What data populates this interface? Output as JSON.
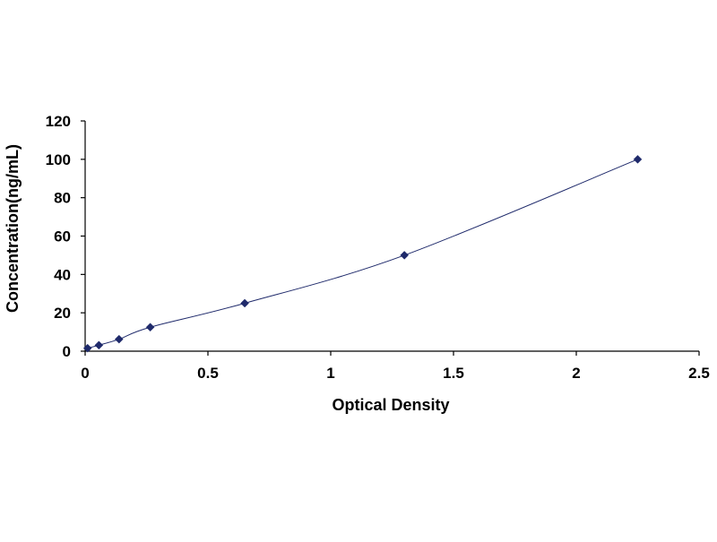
{
  "chart_data": {
    "type": "scatter",
    "title": "",
    "xlabel": "Optical Density",
    "ylabel": "Concentration(ng/mL)",
    "xlim": [
      0,
      2.5
    ],
    "ylim": [
      0,
      120
    ],
    "x_ticks": [
      "0",
      "0.5",
      "1",
      "1.5",
      "2",
      "2.5"
    ],
    "y_ticks": [
      "0",
      "20",
      "40",
      "60",
      "80",
      "100",
      "120"
    ],
    "grid": false,
    "legend": "none",
    "series": [
      {
        "x": [
          0.01,
          0.056,
          0.138,
          0.265,
          0.65,
          1.3,
          2.25
        ],
        "y": [
          1.56,
          3.12,
          6.25,
          12.5,
          25,
          50,
          100
        ],
        "marker": "diamond",
        "smooth_line": true
      }
    ],
    "colors": {
      "marker": "#1f2a6b",
      "line": "#1f2a6b",
      "axis": "#000000"
    }
  }
}
